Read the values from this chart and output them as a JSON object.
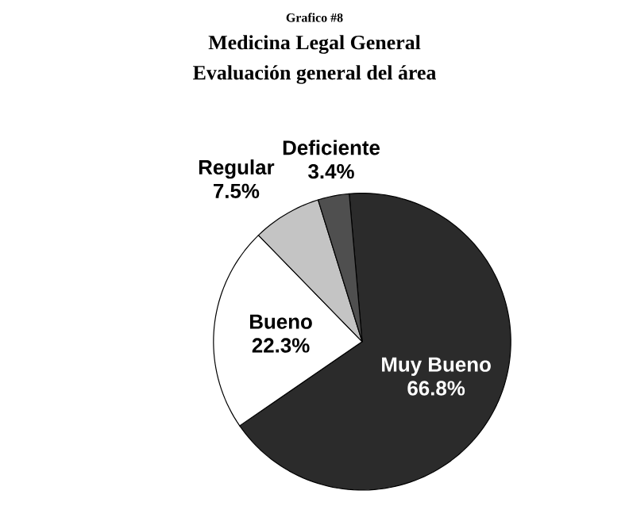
{
  "chart_data": {
    "type": "pie",
    "title": "Medicina Legal General",
    "subtitle": "Evaluación general del área",
    "annotations": [
      "Grafico #8"
    ],
    "categories": [
      "Muy Bueno",
      "Bueno",
      "Regular",
      "Deficiente"
    ],
    "values": [
      66.8,
      22.3,
      7.5,
      3.4
    ],
    "value_labels": [
      "66.8%",
      "22.3%",
      "7.5%",
      "3.4%"
    ],
    "colors": [
      "#2b2b2b",
      "#ffffff",
      "#c4c4c4",
      "#4f4f4f"
    ]
  }
}
